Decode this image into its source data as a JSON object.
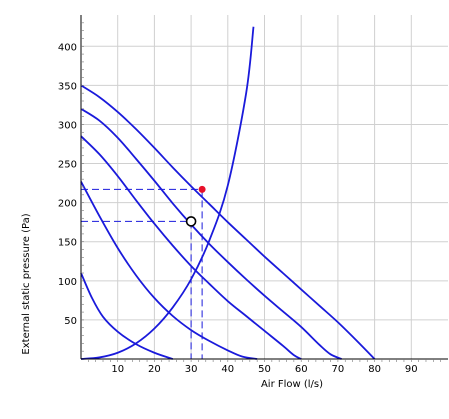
{
  "chart_data": {
    "type": "line",
    "title": "",
    "xlabel": "Air Flow (l/s)",
    "ylabel": "External static pressure (Pa)",
    "xlim": [
      0,
      100
    ],
    "ylim": [
      0,
      440
    ],
    "xticks": [
      10,
      20,
      30,
      40,
      50,
      60,
      70,
      80,
      90
    ],
    "yticks": [
      50,
      100,
      150,
      200,
      250,
      300,
      350,
      400
    ],
    "grid": true,
    "colors": {
      "curve": "#1a1adb",
      "guide": "#1a1adb",
      "operating_point": "#e8102a",
      "grid": "#d0d0d0",
      "axis": "#000000"
    },
    "series": [
      {
        "x": [
          0,
          5,
          10,
          15,
          20,
          25,
          30,
          35,
          40,
          45,
          47
        ],
        "values": [
          0,
          2,
          8,
          20,
          39,
          66,
          102,
          152,
          222,
          340,
          425
        ]
      },
      {
        "x": [
          0,
          3,
          6,
          10,
          15,
          20,
          25
        ],
        "values": [
          110,
          78,
          54,
          35,
          19,
          8,
          0
        ]
      },
      {
        "x": [
          0,
          5,
          10,
          15,
          20,
          25,
          30,
          35,
          40,
          44,
          48
        ],
        "values": [
          227,
          183,
          142,
          107,
          78,
          55,
          37,
          23,
          11,
          3,
          0
        ]
      },
      {
        "x": [
          0,
          5,
          10,
          15,
          20,
          25,
          30,
          35,
          40,
          45,
          50,
          55,
          58,
          60
        ],
        "values": [
          285,
          262,
          234,
          203,
          173,
          145,
          119,
          96,
          74,
          55,
          36,
          17,
          5,
          0
        ]
      },
      {
        "x": [
          0,
          5,
          10,
          15,
          20,
          25,
          30,
          35,
          40,
          45,
          50,
          55,
          60,
          65,
          68,
          71
        ],
        "values": [
          320,
          305,
          283,
          256,
          228,
          199,
          172,
          147,
          124,
          102,
          81,
          61,
          41,
          18,
          6,
          0
        ]
      },
      {
        "x": [
          0,
          5,
          10,
          15,
          20,
          25,
          30,
          35,
          40,
          45,
          50,
          55,
          60,
          65,
          70,
          75,
          80
        ],
        "values": [
          350,
          335,
          316,
          294,
          270,
          245,
          221,
          198,
          175,
          153,
          131,
          110,
          89,
          68,
          47,
          24,
          0
        ]
      }
    ],
    "operating_points": [
      {
        "x": 33,
        "y": 217,
        "style": "filled"
      },
      {
        "x": 30,
        "y": 176,
        "style": "open"
      }
    ]
  }
}
